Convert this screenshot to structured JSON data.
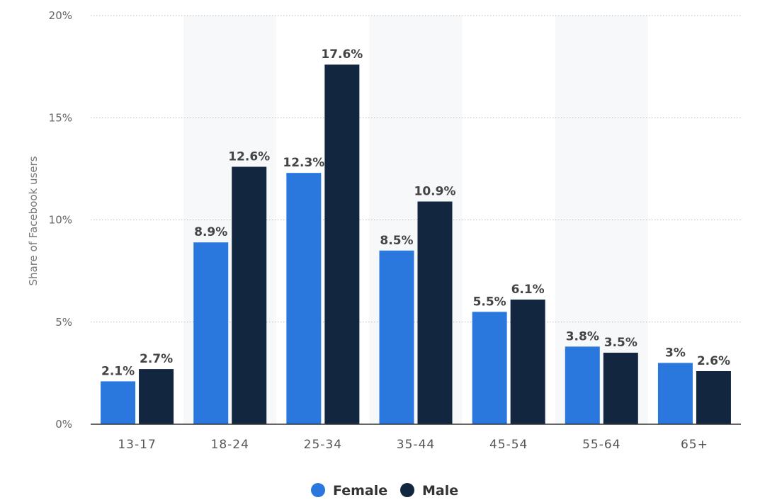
{
  "chart_data": {
    "type": "bar",
    "ylabel": "Share of Facebook users",
    "xlabel": "",
    "ylim": [
      0,
      20
    ],
    "yticks": [
      "0%",
      "5%",
      "10%",
      "15%",
      "20%"
    ],
    "ytick_values": [
      0,
      5,
      10,
      15,
      20
    ],
    "grid": true,
    "legend_position": "bottom-center",
    "categories": [
      "13-17",
      "18-24",
      "25-34",
      "35-44",
      "45-54",
      "55-64",
      "65+"
    ],
    "series": [
      {
        "name": "Female",
        "color": "#2a78de",
        "values": [
          2.1,
          8.9,
          12.3,
          8.5,
          5.5,
          3.8,
          3.0
        ],
        "labels": [
          "2.1%",
          "8.9%",
          "12.3%",
          "8.5%",
          "5.5%",
          "3.8%",
          "3%"
        ]
      },
      {
        "name": "Male",
        "color": "#12263f",
        "values": [
          2.7,
          12.6,
          17.6,
          10.9,
          6.1,
          3.5,
          2.6
        ],
        "labels": [
          "2.7%",
          "12.6%",
          "17.6%",
          "10.9%",
          "6.1%",
          "3.5%",
          "2.6%"
        ]
      }
    ]
  }
}
